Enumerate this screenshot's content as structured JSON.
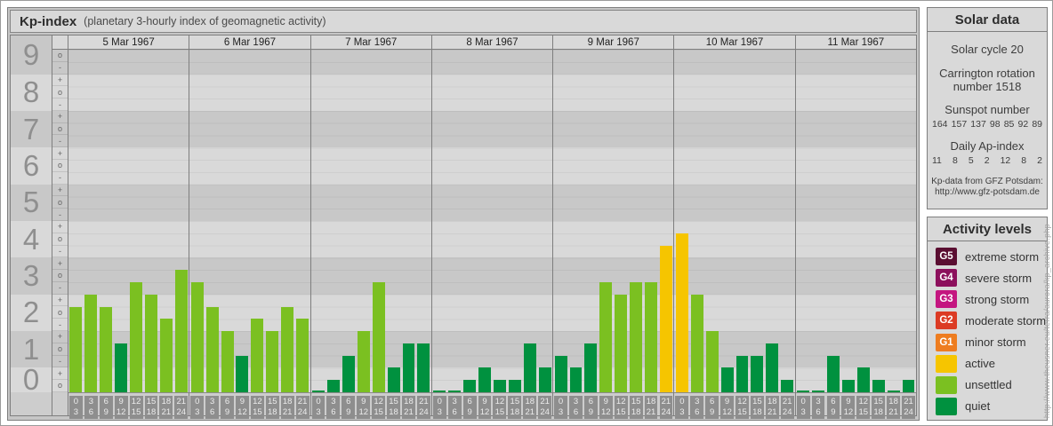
{
  "window": {
    "title": "Kp-index",
    "subtitle": "(planetary 3-hourly index of geomagnetic activity)"
  },
  "chart_data": {
    "type": "bar",
    "title": "Kp-index (planetary 3-hourly index of geomagnetic activity)",
    "ylabel": "Kp",
    "ylim": [
      0,
      9
    ],
    "scale_note": "each Kp unit subdivided into -, o, + thirds; bar unit = thirds above 0o",
    "hours": [
      [
        "0",
        "3"
      ],
      [
        "3",
        "6"
      ],
      [
        "6",
        "9"
      ],
      [
        "9",
        "12"
      ],
      [
        "12",
        "15"
      ],
      [
        "15",
        "18"
      ],
      [
        "18",
        "21"
      ],
      [
        "21",
        "24"
      ]
    ],
    "days": [
      {
        "date": "5 Mar 1967",
        "bars": [
          {
            "kp": "2+",
            "thirds": 7,
            "level": "unsettled"
          },
          {
            "kp": "3-",
            "thirds": 8,
            "level": "unsettled"
          },
          {
            "kp": "2+",
            "thirds": 7,
            "level": "unsettled"
          },
          {
            "kp": "1+",
            "thirds": 4,
            "level": "quiet"
          },
          {
            "kp": "3o",
            "thirds": 9,
            "level": "unsettled"
          },
          {
            "kp": "3-",
            "thirds": 8,
            "level": "unsettled"
          },
          {
            "kp": "2o",
            "thirds": 6,
            "level": "unsettled"
          },
          {
            "kp": "3+",
            "thirds": 10,
            "level": "unsettled"
          }
        ]
      },
      {
        "date": "6 Mar 1967",
        "bars": [
          {
            "kp": "3o",
            "thirds": 9,
            "level": "unsettled"
          },
          {
            "kp": "2+",
            "thirds": 7,
            "level": "unsettled"
          },
          {
            "kp": "2-",
            "thirds": 5,
            "level": "unsettled"
          },
          {
            "kp": "1o",
            "thirds": 3,
            "level": "quiet"
          },
          {
            "kp": "2o",
            "thirds": 6,
            "level": "unsettled"
          },
          {
            "kp": "2-",
            "thirds": 5,
            "level": "unsettled"
          },
          {
            "kp": "2+",
            "thirds": 7,
            "level": "unsettled"
          },
          {
            "kp": "2o",
            "thirds": 6,
            "level": "unsettled"
          }
        ]
      },
      {
        "date": "7 Mar 1967",
        "bars": [
          {
            "kp": "0o",
            "thirds": 0,
            "level": "quiet"
          },
          {
            "kp": "0+",
            "thirds": 1,
            "level": "quiet"
          },
          {
            "kp": "1o",
            "thirds": 3,
            "level": "quiet"
          },
          {
            "kp": "2-",
            "thirds": 5,
            "level": "unsettled"
          },
          {
            "kp": "3o",
            "thirds": 9,
            "level": "unsettled"
          },
          {
            "kp": "1-",
            "thirds": 2,
            "level": "quiet"
          },
          {
            "kp": "1+",
            "thirds": 4,
            "level": "quiet"
          },
          {
            "kp": "1+",
            "thirds": 4,
            "level": "quiet"
          }
        ]
      },
      {
        "date": "8 Mar 1967",
        "bars": [
          {
            "kp": "0o",
            "thirds": 0,
            "level": "quiet"
          },
          {
            "kp": "0o",
            "thirds": 0,
            "level": "quiet"
          },
          {
            "kp": "0+",
            "thirds": 1,
            "level": "quiet"
          },
          {
            "kp": "1-",
            "thirds": 2,
            "level": "quiet"
          },
          {
            "kp": "0+",
            "thirds": 1,
            "level": "quiet"
          },
          {
            "kp": "0+",
            "thirds": 1,
            "level": "quiet"
          },
          {
            "kp": "1+",
            "thirds": 4,
            "level": "quiet"
          },
          {
            "kp": "1-",
            "thirds": 2,
            "level": "quiet"
          }
        ]
      },
      {
        "date": "9 Mar 1967",
        "bars": [
          {
            "kp": "1o",
            "thirds": 3,
            "level": "quiet"
          },
          {
            "kp": "1-",
            "thirds": 2,
            "level": "quiet"
          },
          {
            "kp": "1+",
            "thirds": 4,
            "level": "quiet"
          },
          {
            "kp": "3o",
            "thirds": 9,
            "level": "unsettled"
          },
          {
            "kp": "3-",
            "thirds": 8,
            "level": "unsettled"
          },
          {
            "kp": "3o",
            "thirds": 9,
            "level": "unsettled"
          },
          {
            "kp": "3o",
            "thirds": 9,
            "level": "unsettled"
          },
          {
            "kp": "4o",
            "thirds": 12,
            "level": "active"
          }
        ]
      },
      {
        "date": "10 Mar 1967",
        "bars": [
          {
            "kp": "4+",
            "thirds": 13,
            "level": "active"
          },
          {
            "kp": "3-",
            "thirds": 8,
            "level": "unsettled"
          },
          {
            "kp": "2-",
            "thirds": 5,
            "level": "unsettled"
          },
          {
            "kp": "1-",
            "thirds": 2,
            "level": "quiet"
          },
          {
            "kp": "1o",
            "thirds": 3,
            "level": "quiet"
          },
          {
            "kp": "1o",
            "thirds": 3,
            "level": "quiet"
          },
          {
            "kp": "1+",
            "thirds": 4,
            "level": "quiet"
          },
          {
            "kp": "0+",
            "thirds": 1,
            "level": "quiet"
          }
        ]
      },
      {
        "date": "11 Mar 1967",
        "bars": [
          {
            "kp": "0o",
            "thirds": 0,
            "level": "quiet"
          },
          {
            "kp": "0o",
            "thirds": 0,
            "level": "quiet"
          },
          {
            "kp": "1o",
            "thirds": 3,
            "level": "quiet"
          },
          {
            "kp": "0+",
            "thirds": 1,
            "level": "quiet"
          },
          {
            "kp": "1-",
            "thirds": 2,
            "level": "quiet"
          },
          {
            "kp": "0+",
            "thirds": 1,
            "level": "quiet"
          },
          {
            "kp": "0o",
            "thirds": 0,
            "level": "quiet"
          },
          {
            "kp": "0+",
            "thirds": 1,
            "level": "quiet"
          }
        ]
      }
    ]
  },
  "axis": {
    "kp_numbers": [
      "9",
      "8",
      "7",
      "6",
      "5",
      "4",
      "3",
      "2",
      "1",
      "0"
    ],
    "rows_per_band": [
      2,
      3,
      3,
      3,
      3,
      3,
      3,
      3,
      3,
      2
    ],
    "sub_labels": [
      "o",
      "-",
      "+",
      "o",
      "-",
      "+",
      "o",
      "-",
      "+",
      "o",
      "-",
      "+",
      "o",
      "-",
      "+",
      "o",
      "-",
      "+",
      "o",
      "-",
      "+",
      "o",
      "-",
      "+",
      "o",
      "-",
      "+",
      "o"
    ]
  },
  "colors": {
    "quiet": "#00913f",
    "unsettled": "#7bc021",
    "active": "#f6c500"
  },
  "solar_panel": {
    "title": "Solar data",
    "cycle": "Solar cycle 20",
    "carrington": "Carrington rotation number 1518",
    "sunspot_heading": "Sunspot number",
    "sunspot_numbers": [
      "164",
      "157",
      "137",
      "98",
      "85",
      "92",
      "89"
    ],
    "ap_heading": "Daily Ap-index",
    "ap_values": [
      "11",
      "8",
      "5",
      "2",
      "12",
      "8",
      "2"
    ],
    "source_note": "Kp-data from GFZ Potsdam: http://www.gfz-potsdam.de"
  },
  "activity_panel": {
    "title": "Activity levels",
    "items": [
      {
        "code": "G5",
        "label": "extreme storm",
        "color": "#5a0e31"
      },
      {
        "code": "G4",
        "label": "severe storm",
        "color": "#8c105c"
      },
      {
        "code": "G3",
        "label": "strong storm",
        "color": "#c41680"
      },
      {
        "code": "G2",
        "label": "moderate storm",
        "color": "#dc3b24"
      },
      {
        "code": "G1",
        "label": "minor storm",
        "color": "#ee7d20"
      },
      {
        "code": null,
        "label": "active",
        "color": "#f6c500"
      },
      {
        "code": null,
        "label": "unsettled",
        "color": "#7bc021"
      },
      {
        "code": null,
        "label": "quiet",
        "color": "#00913f"
      }
    ]
  },
  "watermark_url": "http://www.theusner.eu/terra/aurora/kp_archive.php"
}
